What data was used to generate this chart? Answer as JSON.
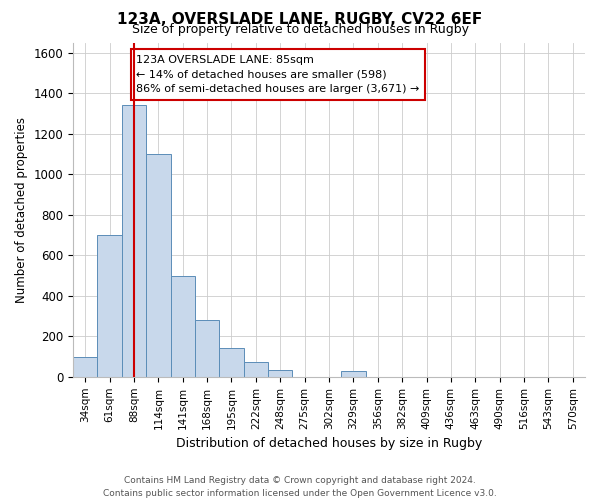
{
  "title": "123A, OVERSLADE LANE, RUGBY, CV22 6EF",
  "subtitle": "Size of property relative to detached houses in Rugby",
  "xlabel": "Distribution of detached houses by size in Rugby",
  "ylabel": "Number of detached properties",
  "categories": [
    "34sqm",
    "61sqm",
    "88sqm",
    "114sqm",
    "141sqm",
    "168sqm",
    "195sqm",
    "222sqm",
    "248sqm",
    "275sqm",
    "302sqm",
    "329sqm",
    "356sqm",
    "382sqm",
    "409sqm",
    "436sqm",
    "463sqm",
    "490sqm",
    "516sqm",
    "543sqm",
    "570sqm"
  ],
  "values": [
    100,
    700,
    1340,
    1100,
    500,
    280,
    140,
    75,
    35,
    0,
    0,
    30,
    0,
    0,
    0,
    0,
    0,
    0,
    0,
    0,
    0
  ],
  "bar_color": "#c8d8eb",
  "bar_edge_color": "#5b8db8",
  "property_line_x": 2,
  "property_line_color": "#cc0000",
  "annotation_text": "123A OVERSLADE LANE: 85sqm\n← 14% of detached houses are smaller (598)\n86% of semi-detached houses are larger (3,671) →",
  "annotation_box_color": "#ffffff",
  "annotation_box_edge_color": "#cc0000",
  "ylim": [
    0,
    1650
  ],
  "yticks": [
    0,
    200,
    400,
    600,
    800,
    1000,
    1200,
    1400,
    1600
  ],
  "footer_line1": "Contains HM Land Registry data © Crown copyright and database right 2024.",
  "footer_line2": "Contains public sector information licensed under the Open Government Licence v3.0.",
  "bg_color": "#ffffff",
  "grid_color": "#cccccc",
  "title_fontsize": 11,
  "subtitle_fontsize": 9
}
